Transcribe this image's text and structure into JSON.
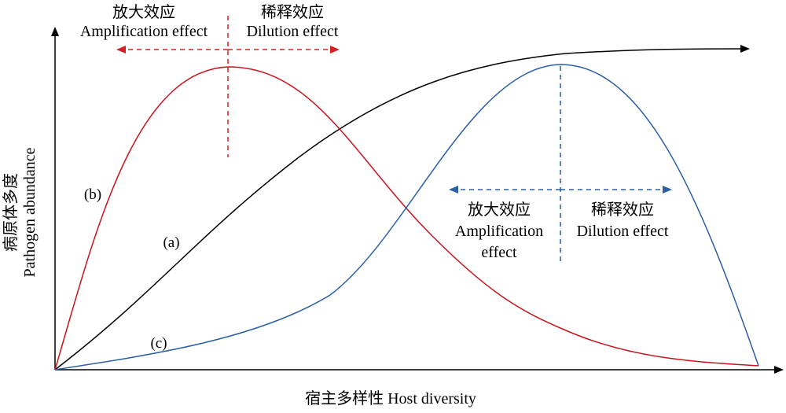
{
  "axes": {
    "y_label_cn": "病原体多度",
    "y_label_en": "Pathogen abundance",
    "x_label": "宿主多样性 Host diversity"
  },
  "curves": [
    {
      "id": "a",
      "label": "(a)",
      "color": "#000000"
    },
    {
      "id": "b",
      "label": "(b)",
      "color": "#c8141e"
    },
    {
      "id": "c",
      "label": "(c)",
      "color": "#2b5fa6"
    }
  ],
  "top_annotation": {
    "left_cn": "放大效应",
    "left_en": "Amplification effect",
    "right_cn": "稀释效应",
    "right_en": "Dilution effect",
    "color": "#d42020"
  },
  "right_annotation": {
    "left_cn": "放大效应",
    "left_en_line1": "Amplification",
    "left_en_line2": "effect",
    "right_cn": "稀释效应",
    "right_en": "Dilution effect",
    "color": "#2b5fa6"
  }
}
